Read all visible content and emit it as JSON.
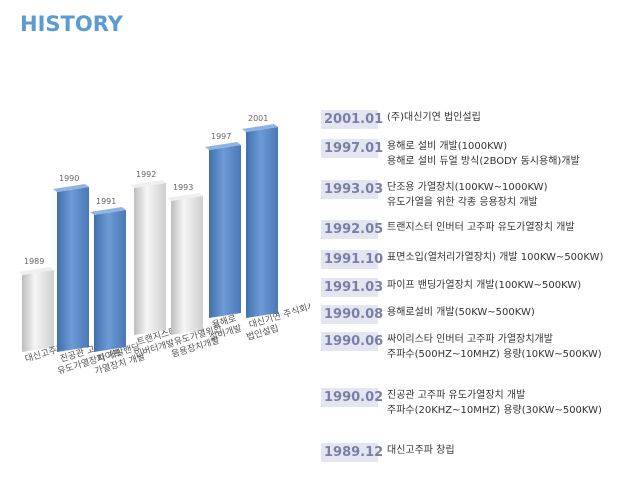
{
  "header": {
    "title": "HISTORY"
  },
  "colors": {
    "title": "#5b9bd5",
    "bar_blue": "#5b87c4",
    "bar_grey": "#d6d6d6",
    "year_bg": "#e3e6f1",
    "year_text": "#7b7fa8"
  },
  "chart": {
    "bars": [
      {
        "year": "1989",
        "height": 1,
        "color": "grey",
        "label": [
          "대신고주파 창립"
        ]
      },
      {
        "year": "1990",
        "height": 3,
        "color": "blue",
        "label": [
          "진공관 고주파",
          "유도가열장치 개발"
        ]
      },
      {
        "year": "1991",
        "height": 2,
        "color": "blue",
        "label": [
          "파이프 밴딩",
          "가열장치 개발"
        ]
      },
      {
        "year": "1992",
        "height": 3,
        "color": "grey",
        "label": [
          "트랜지스터",
          "인버터개발"
        ]
      },
      {
        "year": "1993",
        "height": 2,
        "color": "grey",
        "label": [
          "유도가열위한",
          "응용장치개발"
        ]
      },
      {
        "year": "1997",
        "height": 4,
        "color": "blue",
        "label": [
          "용해로",
          "설비개발"
        ]
      },
      {
        "year": "2001",
        "height": 5,
        "color": "blue",
        "label": [
          "대신기연 주식회사",
          "법인설립"
        ]
      }
    ]
  },
  "timeline": [
    {
      "date": "2001.01",
      "lines": [
        "(주)대신기연 법인설립"
      ]
    },
    {
      "date": "1997.01",
      "lines": [
        "용해로 설비 개발(1000KW)",
        "용해로 설비 듀얼 방식(2BODY 동시용해)개발"
      ]
    },
    {
      "date": "1993.03",
      "lines": [
        "단조용 가열장치(100KW~1000KW)",
        "유도가열을 위한 각종 응용장치 개발"
      ]
    },
    {
      "date": "1992.05",
      "lines": [
        "트랜지스터 인버터 고주파 유도가열장치 개발"
      ]
    },
    {
      "date": "1991.10",
      "lines": [
        "표면소입(열처리가열장치) 개발 100KW~500KW)"
      ]
    },
    {
      "date": "1991.03",
      "lines": [
        "파이프 밴딩가열장치 개발(100KW~500KW)"
      ]
    },
    {
      "date": "1990.08",
      "lines": [
        "용해로설비 개발(50KW~500KW)"
      ]
    },
    {
      "date": "1990.06",
      "lines": [
        "싸이리스타 인버터 고주파 가열장치개발",
        "주파수(500HZ~10MHZ) 용량(10KW~500KW)"
      ]
    },
    {
      "date": "1990.02",
      "lines": [
        "진공관 고주파 유도가열장치 개발",
        "주파수(20KHZ~10MHZ) 용량(30KW~500KW)"
      ]
    },
    {
      "date": "1989.12",
      "lines": [
        "대신고주파 창립"
      ]
    }
  ]
}
